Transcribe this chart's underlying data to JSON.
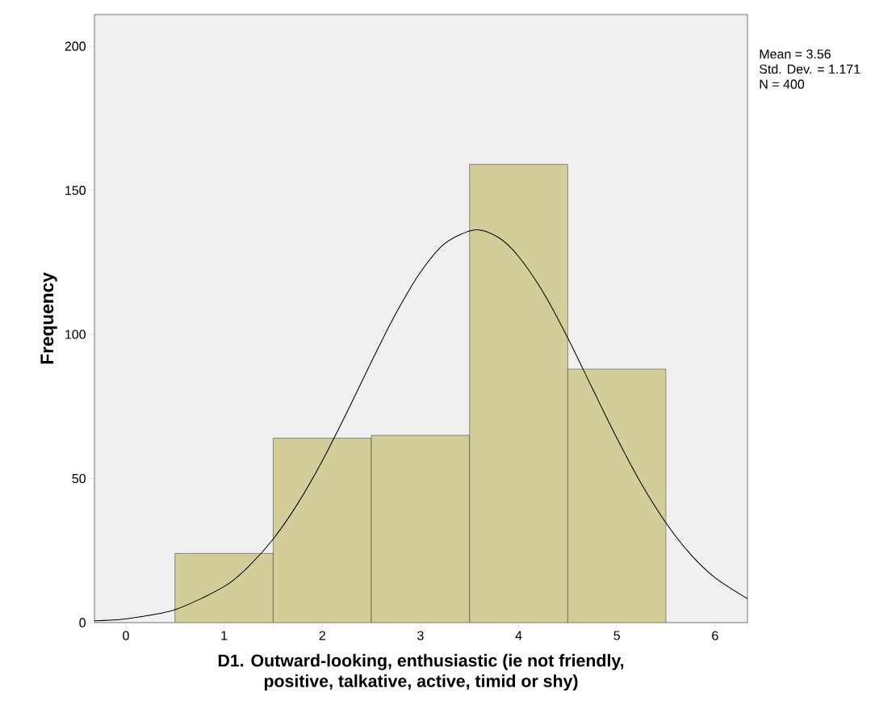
{
  "chart_data": {
    "type": "histogram",
    "xlabel": "D1. Outward-looking, enthusiastic (ie not friendly,\npositive, talkative, active, timid or shy)",
    "ylabel": "Frequency",
    "bins": [
      0.5,
      1.5,
      2.5,
      3.5,
      4.5,
      5.5
    ],
    "series": [
      {
        "type": "histogram",
        "color": "#d3ce99",
        "values": [
          24,
          64,
          65,
          159,
          88
        ]
      },
      {
        "type": "line",
        "color": "#000000",
        "x": [
          -0.32,
          0,
          0.5,
          1,
          1.25,
          1.5,
          1.75,
          2,
          2.25,
          2.5,
          2.75,
          3,
          3.25,
          3.56,
          3.8,
          4,
          4.25,
          4.5,
          4.75,
          5,
          5.25,
          5.5,
          5.75,
          6,
          6.33
        ],
        "values": [
          0.6,
          1.3,
          4.5,
          12.5,
          19.5,
          29,
          41.3,
          56.1,
          72.9,
          90.5,
          107.3,
          121.6,
          131.6,
          136.3,
          133.5,
          127,
          114.6,
          98.8,
          81.3,
          64,
          48.1,
          34.6,
          23.7,
          15.6,
          8.3
        ]
      }
    ],
    "xlim": [
      -0.32,
      6.33
    ],
    "ylim": [
      0,
      211
    ],
    "xticks": [
      0,
      1,
      2,
      3,
      4,
      5,
      6
    ],
    "yticks": [
      0,
      50,
      100,
      150,
      200
    ],
    "grid": false,
    "annotations": [
      "Mean = 3.56",
      "Std. Dev. = 1.171",
      "N = 400"
    ]
  }
}
